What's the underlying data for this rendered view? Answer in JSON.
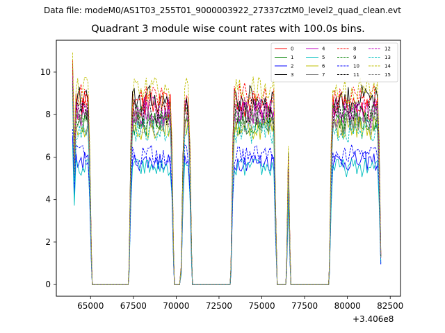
{
  "header": {
    "data_file": "Data file: modeM0/AS1T03_255T01_9000003922_27337cztM0_level2_quad_clean.evt"
  },
  "chart_data": {
    "type": "line",
    "title": "Quadrant 3 module wise count rates with 100.0s bins.",
    "xlabel": "",
    "ylabel": "",
    "x_offset_label": "+3.406e8",
    "xlim": [
      63000,
      83100
    ],
    "ylim": [
      -0.55,
      11.5
    ],
    "xticks": [
      65000,
      67500,
      70000,
      72500,
      75000,
      77500,
      80000,
      82500
    ],
    "xtick_labels": [
      "65000",
      "67500",
      "70000",
      "72500",
      "75000",
      "77500",
      "80000",
      "82500"
    ],
    "yticks": [
      0,
      2,
      4,
      6,
      8,
      10
    ],
    "ytick_labels": [
      "0",
      "2",
      "4",
      "6",
      "8",
      "10"
    ],
    "legend_position": "top-right",
    "legend_columns": 4,
    "segments": [
      {
        "start": 63950,
        "end": 65100,
        "high": true
      },
      {
        "start": 65100,
        "end": 67250,
        "high": false
      },
      {
        "start": 67250,
        "end": 69900,
        "high": true
      },
      {
        "start": 69900,
        "end": 70300,
        "high": false
      },
      {
        "start": 70300,
        "end": 70950,
        "high": true
      },
      {
        "start": 70950,
        "end": 73200,
        "high": false
      },
      {
        "start": 73200,
        "end": 75900,
        "high": true
      },
      {
        "start": 75900,
        "end": 76450,
        "high": false
      },
      {
        "start": 76450,
        "end": 76700,
        "high": true
      },
      {
        "start": 76700,
        "end": 78950,
        "high": false
      },
      {
        "start": 78950,
        "end": 82000,
        "high": true
      }
    ],
    "series": [
      {
        "name": "0",
        "color": "#ff0000",
        "dash": false,
        "level": 8.4
      },
      {
        "name": "1",
        "color": "#008000",
        "dash": false,
        "level": 7.6
      },
      {
        "name": "2",
        "color": "#0000ff",
        "dash": false,
        "level": 5.8
      },
      {
        "name": "3",
        "color": "#000000",
        "dash": false,
        "level": 8.7
      },
      {
        "name": "4",
        "color": "#bf00bf",
        "dash": false,
        "level": 8.0
      },
      {
        "name": "5",
        "color": "#00bfbf",
        "dash": false,
        "level": 5.5
      },
      {
        "name": "6",
        "color": "#bfbf00",
        "dash": false,
        "level": 7.4
      },
      {
        "name": "7",
        "color": "#808080",
        "dash": false,
        "level": 7.8
      },
      {
        "name": "8",
        "color": "#ff0000",
        "dash": true,
        "level": 8.8
      },
      {
        "name": "9",
        "color": "#008000",
        "dash": true,
        "level": 7.9
      },
      {
        "name": "10",
        "color": "#0000ff",
        "dash": true,
        "level": 6.1
      },
      {
        "name": "11",
        "color": "#000000",
        "dash": true,
        "level": 8.1
      },
      {
        "name": "12",
        "color": "#bf00bf",
        "dash": true,
        "level": 8.2
      },
      {
        "name": "13",
        "color": "#00bfbf",
        "dash": true,
        "level": 7.2
      },
      {
        "name": "14",
        "color": "#bfbf00",
        "dash": true,
        "level": 9.1
      },
      {
        "name": "15",
        "color": "#808080",
        "dash": true,
        "level": 7.6
      }
    ]
  }
}
